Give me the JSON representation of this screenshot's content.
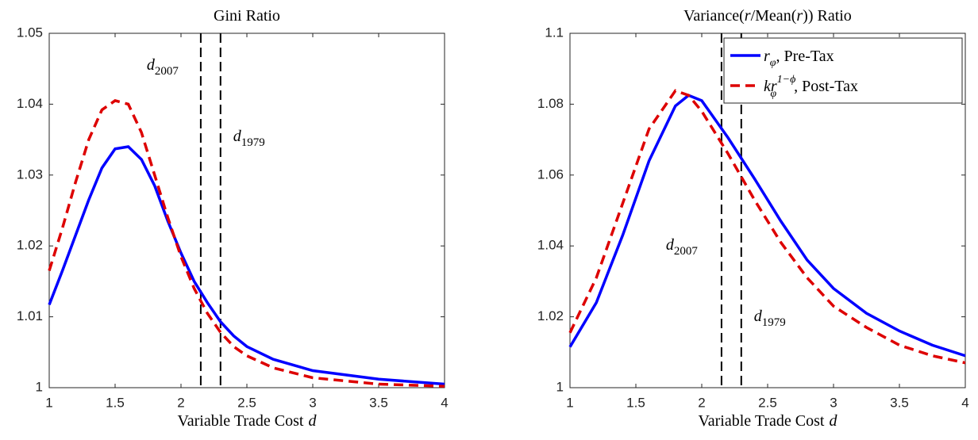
{
  "chart_data": [
    {
      "type": "line",
      "title": "Gini Ratio",
      "xlabel": {
        "text": "Variable Trade Cost",
        "var": "d"
      },
      "x": [
        1.0,
        1.1,
        1.2,
        1.3,
        1.4,
        1.5,
        1.6,
        1.7,
        1.8,
        1.9,
        2.0,
        2.1,
        2.2,
        2.3,
        2.4,
        2.5,
        2.7,
        3.0,
        3.5,
        4.0
      ],
      "series": [
        {
          "color": "#0000ff",
          "dash": false,
          "values": [
            1.0117,
            1.0165,
            1.0215,
            1.0265,
            1.031,
            1.0337,
            1.034,
            1.0322,
            1.0285,
            1.0235,
            1.019,
            1.015,
            1.012,
            1.0093,
            1.0073,
            1.0058,
            1.004,
            1.0024,
            1.0012,
            1.0005
          ]
        },
        {
          "color": "#dd0000",
          "dash": true,
          "values": [
            1.0165,
            1.0225,
            1.029,
            1.035,
            1.0392,
            1.0405,
            1.04,
            1.036,
            1.03,
            1.024,
            1.0185,
            1.014,
            1.0105,
            1.0078,
            1.0058,
            1.0045,
            1.0028,
            1.0014,
            1.0005,
            1.0002
          ]
        }
      ],
      "vlines": [
        {
          "x": 2.15,
          "label": {
            "base": "d",
            "sub": "2007"
          }
        },
        {
          "x": 2.3,
          "label": {
            "base": "d",
            "sub": "1979"
          }
        }
      ],
      "xlim": [
        1,
        4
      ],
      "xticks": [
        1,
        1.5,
        2,
        2.5,
        3,
        3.5,
        4
      ],
      "ylim": [
        1,
        1.05
      ],
      "yticks": [
        1,
        1.01,
        1.02,
        1.03,
        1.04,
        1.05
      ]
    },
    {
      "type": "line",
      "title": {
        "pre": "Variance(",
        "v1": "r",
        "mid": "/Mean(",
        "v2": "r",
        "post": ")) Ratio"
      },
      "xlabel": {
        "text": "Variable Trade Cost",
        "var": "d"
      },
      "x": [
        1.0,
        1.2,
        1.4,
        1.6,
        1.8,
        1.9,
        2.0,
        2.2,
        2.4,
        2.6,
        2.8,
        3.0,
        3.25,
        3.5,
        3.75,
        4.0
      ],
      "series": [
        {
          "name": {
            "base": "r",
            "sub": "φ",
            "rest": ", Pre-Tax"
          },
          "color": "#0000ff",
          "dash": false,
          "values": [
            1.0115,
            1.024,
            1.043,
            1.064,
            1.0795,
            1.0825,
            1.081,
            1.0705,
            1.059,
            1.047,
            1.036,
            1.028,
            1.021,
            1.016,
            1.012,
            1.009
          ]
        },
        {
          "name": {
            "base": "kr",
            "sub": "φ",
            "sup": "1−ϕ",
            "rest": ", Post-Tax"
          },
          "color": "#dd0000",
          "dash": true,
          "values": [
            1.0155,
            1.031,
            1.052,
            1.073,
            1.0838,
            1.0825,
            1.078,
            1.066,
            1.053,
            1.041,
            1.031,
            1.023,
            1.017,
            1.012,
            1.009,
            1.007
          ]
        }
      ],
      "vlines": [
        {
          "x": 2.15,
          "label": {
            "base": "d",
            "sub": "2007"
          }
        },
        {
          "x": 2.3,
          "label": {
            "base": "d",
            "sub": "1979"
          }
        }
      ],
      "xlim": [
        1,
        4
      ],
      "xticks": [
        1,
        1.5,
        2,
        2.5,
        3,
        3.5,
        4
      ],
      "ylim": [
        1,
        1.1
      ],
      "yticks": [
        1,
        1.02,
        1.04,
        1.06,
        1.08,
        1.1
      ],
      "legend": "upper right"
    }
  ]
}
